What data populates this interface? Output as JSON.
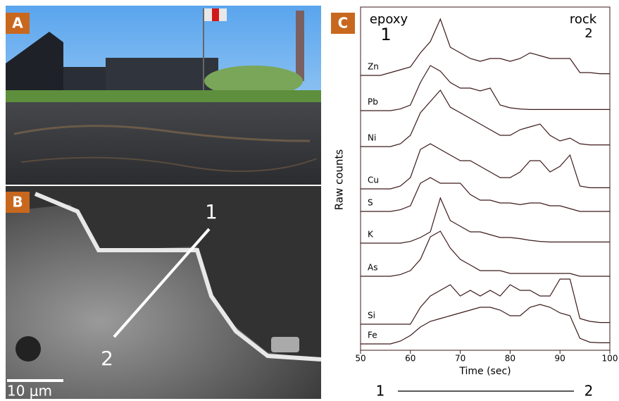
{
  "panel_labels": [
    "A",
    "B",
    "C"
  ],
  "micrograph": {
    "point_labels": [
      "1",
      "2"
    ],
    "scale_bar": "10 μm"
  },
  "chart_data": {
    "type": "line",
    "xlabel": "Time (sec)",
    "ylabel": "Raw counts",
    "annotations": [
      "epoxy",
      "1",
      "rock",
      "2"
    ],
    "transect_labels": [
      "1",
      "2"
    ],
    "color": "#3d1a1a",
    "xlim": [
      50,
      100
    ],
    "xticks": [
      50,
      60,
      70,
      80,
      90,
      100
    ],
    "x": [
      50,
      52,
      54,
      56,
      58,
      60,
      62,
      64,
      66,
      68,
      70,
      72,
      74,
      76,
      78,
      80,
      82,
      84,
      86,
      88,
      90,
      92,
      94,
      96,
      98,
      100
    ],
    "series": [
      {
        "name": "Zn",
        "values": [
          0,
          0,
          0,
          0.5,
          1,
          1.5,
          4,
          6,
          10,
          5,
          4,
          3,
          2.5,
          3,
          3,
          2.5,
          3,
          4,
          3.5,
          3,
          3,
          3,
          0.5,
          0.5,
          0.3,
          0.3
        ]
      },
      {
        "name": "Pb",
        "values": [
          0,
          0,
          0,
          0,
          0.3,
          1,
          5,
          8,
          7,
          5,
          4,
          4,
          3.5,
          4,
          1,
          0.5,
          0.3,
          0.2,
          0.2,
          0.2,
          0.2,
          0.2,
          0.2,
          0.2,
          0.2,
          0.2
        ]
      },
      {
        "name": "Ni",
        "values": [
          0,
          0,
          0,
          0,
          0.5,
          2,
          6,
          8,
          10,
          7,
          6,
          5,
          4,
          3,
          2,
          2,
          3,
          3.5,
          4,
          2,
          1,
          1.5,
          0.5,
          0.3,
          0.3,
          0.3
        ]
      },
      {
        "name": "Cu",
        "values": [
          0,
          0,
          0,
          0,
          0.5,
          2,
          7,
          8,
          7,
          6,
          5,
          5,
          4,
          3,
          2,
          2,
          3,
          5,
          5,
          3,
          4,
          6,
          0.5,
          0.2,
          0.2,
          0.2
        ]
      },
      {
        "name": "S",
        "values": [
          0,
          0,
          0,
          0,
          0.3,
          1,
          5,
          6,
          5,
          5,
          5,
          3,
          2,
          2,
          1.5,
          1.5,
          1.2,
          1.5,
          1.5,
          1,
          1,
          0.5,
          0,
          0,
          0,
          0
        ]
      },
      {
        "name": "K",
        "values": [
          0,
          0,
          0,
          0,
          0,
          0.3,
          1,
          2,
          8,
          4,
          3,
          2,
          2,
          1.5,
          1,
          1,
          0.8,
          0.5,
          0.3,
          0.2,
          0.2,
          0.2,
          0.2,
          0.2,
          0.2,
          0.2
        ]
      },
      {
        "name": "As",
        "values": [
          0,
          0,
          0,
          0,
          0.3,
          1,
          3,
          7,
          8,
          5,
          3,
          2,
          1,
          1,
          1,
          0.5,
          0.5,
          0.5,
          0.5,
          0.5,
          0.5,
          0.5,
          0,
          0,
          0,
          0
        ]
      },
      {
        "name": "Si",
        "values": [
          0,
          0,
          0,
          0,
          0,
          0,
          3,
          5,
          6,
          7,
          5,
          6,
          5,
          6,
          5,
          7,
          6,
          6,
          5,
          5,
          8,
          8,
          1,
          0.5,
          0.3,
          0.3
        ]
      },
      {
        "name": "Fe",
        "values": [
          0,
          0,
          0,
          0,
          0.5,
          1.5,
          3,
          4,
          4.5,
          5,
          5.5,
          6,
          6.5,
          6.5,
          6,
          5,
          5,
          6.5,
          7,
          6.5,
          5.5,
          5,
          1,
          0.3,
          0.2,
          0.2
        ]
      }
    ]
  }
}
